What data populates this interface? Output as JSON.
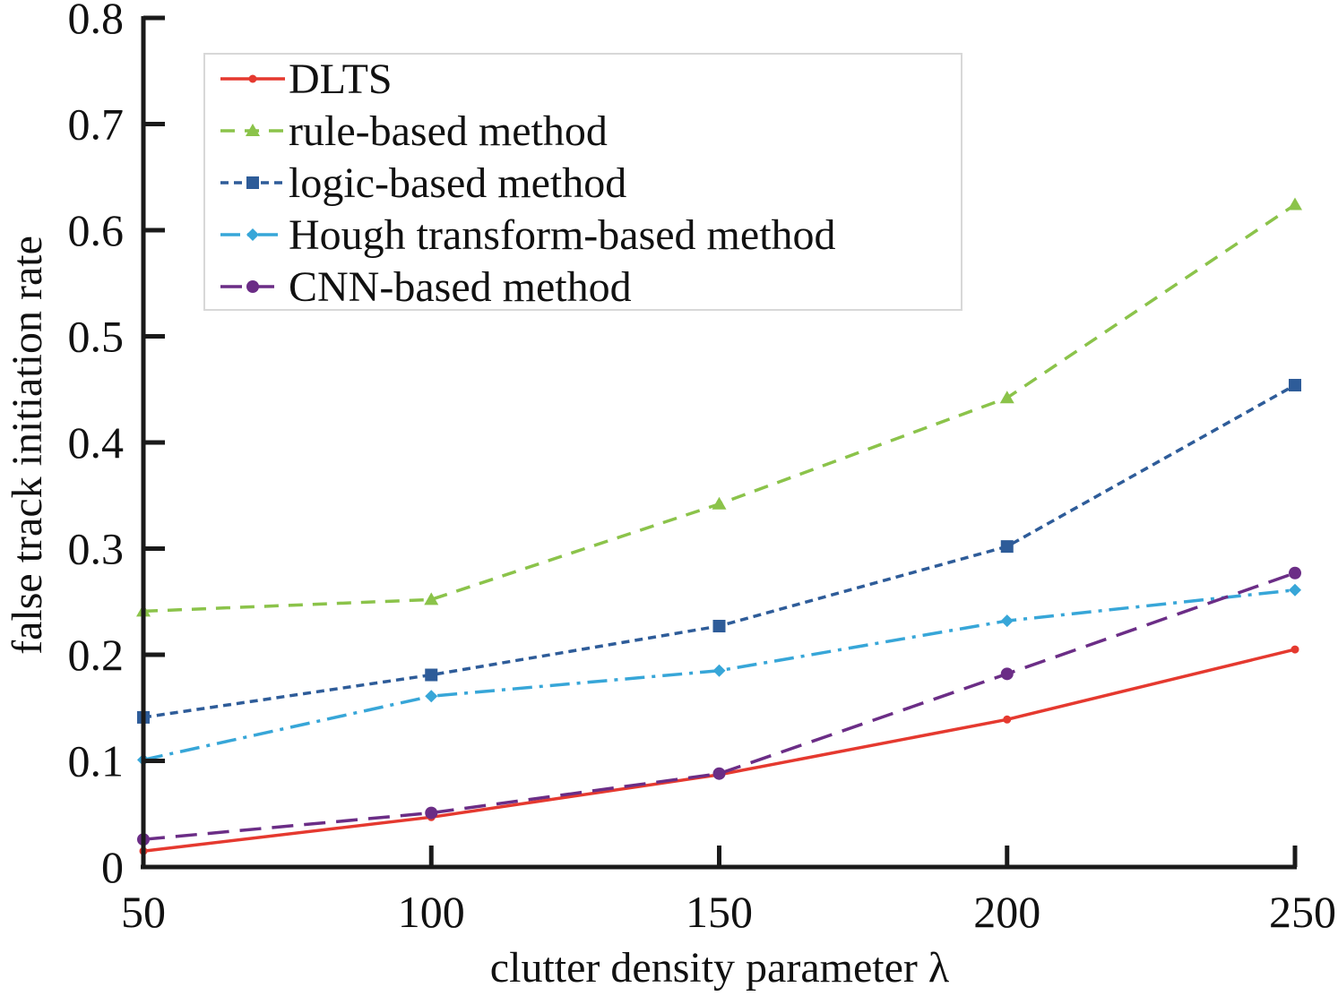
{
  "chart_data": {
    "type": "line",
    "title": "",
    "xlabel": "clutter density parameter λ",
    "ylabel": "false track initiation rate",
    "x": [
      50,
      100,
      150,
      200,
      250
    ],
    "xlim": [
      50,
      250
    ],
    "ylim": [
      0,
      0.8
    ],
    "xticks": [
      50,
      100,
      150,
      200,
      250
    ],
    "yticks": [
      0,
      0.1,
      0.2,
      0.3,
      0.4,
      0.5,
      0.6,
      0.7,
      0.8
    ],
    "xtick_labels": [
      "50",
      "100",
      "150",
      "200",
      "250"
    ],
    "ytick_labels": [
      "0",
      "0.1",
      "0.2",
      "0.3",
      "0.4",
      "0.5",
      "0.6",
      "0.7",
      "0.8"
    ],
    "grid": false,
    "legend_position": "top-left",
    "series": [
      {
        "name": "DLTS",
        "values": [
          0.015,
          0.047,
          0.087,
          0.139,
          0.205
        ],
        "color": "#e5392f",
        "dash": "solid",
        "marker": "dot"
      },
      {
        "name": "rule-based method",
        "values": [
          0.241,
          0.252,
          0.342,
          0.442,
          0.624
        ],
        "color": "#8bc34a",
        "dash": "dashed",
        "marker": "triangle"
      },
      {
        "name": "logic-based method",
        "values": [
          0.141,
          0.181,
          0.227,
          0.302,
          0.454
        ],
        "color": "#2e5c99",
        "dash": "short-dashed",
        "marker": "square"
      },
      {
        "name": "Hough transform-based method",
        "values": [
          0.101,
          0.161,
          0.185,
          0.232,
          0.261
        ],
        "color": "#37a6d8",
        "dash": "dash-dot",
        "marker": "diamond"
      },
      {
        "name": "CNN-based method",
        "values": [
          0.026,
          0.051,
          0.088,
          0.182,
          0.277
        ],
        "color": "#6b2d86",
        "dash": "long-dashed",
        "marker": "circle"
      }
    ]
  }
}
